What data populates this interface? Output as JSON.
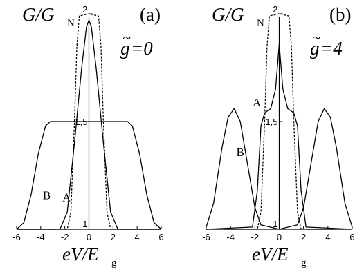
{
  "chart_data": [
    {
      "type": "line",
      "panel_label": "(a)",
      "ylabel_main": "G/G",
      "ylabel_sub": "N",
      "annotation_letter": "g",
      "annotation_tilde": "~",
      "annotation_value": "=0",
      "xlabel_main": "eV/E",
      "xlabel_sub": "g",
      "xlim": [
        -6,
        6
      ],
      "ylim": [
        1,
        2
      ],
      "x_ticks": [
        "-6",
        "-4",
        "-2",
        "0",
        "2",
        "4",
        "6"
      ],
      "x_tick_values": [
        -6,
        -4,
        -2,
        0,
        2,
        4,
        6
      ],
      "y_ticks": [
        "1",
        "1,5",
        "2"
      ],
      "y_tick_values": [
        1,
        1.5,
        2
      ],
      "series": [
        {
          "name": "A",
          "style": "solid",
          "x": [
            -6,
            -2.4,
            -1.8,
            -1.2,
            -0.6,
            -0.2,
            0,
            0.2,
            0.6,
            1.2,
            1.8,
            2.4,
            6
          ],
          "y": [
            1,
            1.0,
            1.08,
            1.4,
            1.75,
            1.94,
            1.97,
            1.94,
            1.75,
            1.4,
            1.08,
            1.0,
            1
          ]
        },
        {
          "name": "B",
          "style": "solid",
          "x": [
            -6,
            -5.4,
            -4.8,
            -4.2,
            -3.6,
            -3.2,
            0,
            3.2,
            3.6,
            4.2,
            4.8,
            5.4,
            6
          ],
          "y": [
            1,
            1.03,
            1.16,
            1.35,
            1.48,
            1.5,
            1.5,
            1.5,
            1.48,
            1.35,
            1.16,
            1.03,
            1
          ]
        },
        {
          "name": "",
          "style": "dashed",
          "x": [
            -6,
            -1.8,
            -1.5,
            -1.2,
            -1.0,
            -0.8,
            0,
            0.8,
            1.0,
            1.2,
            1.5,
            1.8,
            6
          ],
          "y": [
            1,
            1.0,
            1.08,
            1.5,
            1.85,
            1.99,
            2.0,
            1.99,
            1.85,
            1.5,
            1.08,
            1.0,
            1
          ]
        }
      ],
      "labels": [
        {
          "text": "A",
          "x": -1.85,
          "y": 1.13
        },
        {
          "text": "B",
          "x": -3.5,
          "y": 1.14
        }
      ]
    },
    {
      "type": "line",
      "panel_label": "(b)",
      "ylabel_main": "G/G",
      "ylabel_sub": "N",
      "annotation_letter": "g",
      "annotation_tilde": "~",
      "annotation_value": "=4",
      "xlabel_main": "eV/E",
      "xlabel_sub": "g",
      "xlim": [
        -6,
        6
      ],
      "ylim": [
        1,
        2
      ],
      "x_ticks": [
        "-6",
        "-4",
        "-2",
        "0",
        "2",
        "4",
        "6"
      ],
      "x_tick_values": [
        -6,
        -4,
        -2,
        0,
        2,
        4,
        6
      ],
      "y_ticks": [
        "1",
        "1,5",
        "2"
      ],
      "y_tick_values": [
        1,
        1.5,
        2
      ],
      "series": [
        {
          "name": "A",
          "style": "solid",
          "x": [
            -6,
            -2.2,
            -1.8,
            -1.5,
            -1.2,
            -0.7,
            -0.3,
            0,
            0.3,
            0.7,
            1.2,
            1.5,
            1.8,
            2.2,
            6
          ],
          "y": [
            1,
            1.01,
            1.18,
            1.48,
            1.54,
            1.56,
            1.65,
            1.86,
            1.65,
            1.56,
            1.54,
            1.48,
            1.18,
            1.01,
            1
          ]
        },
        {
          "name": "B",
          "style": "solid",
          "x": [
            -6,
            -5.4,
            -4.7,
            -4.2,
            -3.7,
            -3.2,
            -2.6,
            -2.0,
            -1.5,
            0,
            1.5,
            2.0,
            2.6,
            3.2,
            3.7,
            4.2,
            4.7,
            5.4,
            6
          ],
          "y": [
            1.01,
            1.12,
            1.38,
            1.52,
            1.56,
            1.5,
            1.3,
            1.1,
            1.02,
            1.0,
            1.02,
            1.1,
            1.3,
            1.5,
            1.56,
            1.52,
            1.38,
            1.12,
            1.01
          ]
        },
        {
          "name": "",
          "style": "dashed",
          "x": [
            -6,
            -1.8,
            -1.5,
            -1.2,
            -1.0,
            -0.8,
            0,
            0.8,
            1.0,
            1.2,
            1.5,
            1.8,
            6
          ],
          "y": [
            1,
            1.0,
            1.08,
            1.5,
            1.85,
            1.99,
            2.0,
            1.99,
            1.85,
            1.5,
            1.08,
            1.0,
            1
          ]
        }
      ],
      "labels": [
        {
          "text": "A",
          "x": -1.85,
          "y": 1.57
        },
        {
          "text": "B",
          "x": -3.2,
          "y": 1.34
        }
      ]
    }
  ]
}
